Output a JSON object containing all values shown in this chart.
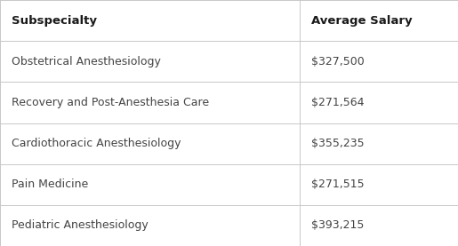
{
  "headers": [
    "Subspecialty",
    "Average Salary"
  ],
  "rows": [
    [
      "Obstetrical Anesthesiology",
      "$327,500"
    ],
    [
      "Recovery and Post-Anesthesia Care",
      "$271,564"
    ],
    [
      "Cardiothoracic Anesthesiology",
      "$355,235"
    ],
    [
      "Pain Medicine",
      "$271,515"
    ],
    [
      "Pediatric Anesthesiology",
      "$393,215"
    ]
  ],
  "background_color": "#ffffff",
  "border_color": "#c8c8c8",
  "header_text_color": "#1a1a1a",
  "row_text_color": "#444444",
  "header_fontsize": 9.5,
  "row_fontsize": 9.0,
  "col_split": 0.655,
  "fig_width": 5.15,
  "fig_height": 2.77,
  "dpi": 100
}
